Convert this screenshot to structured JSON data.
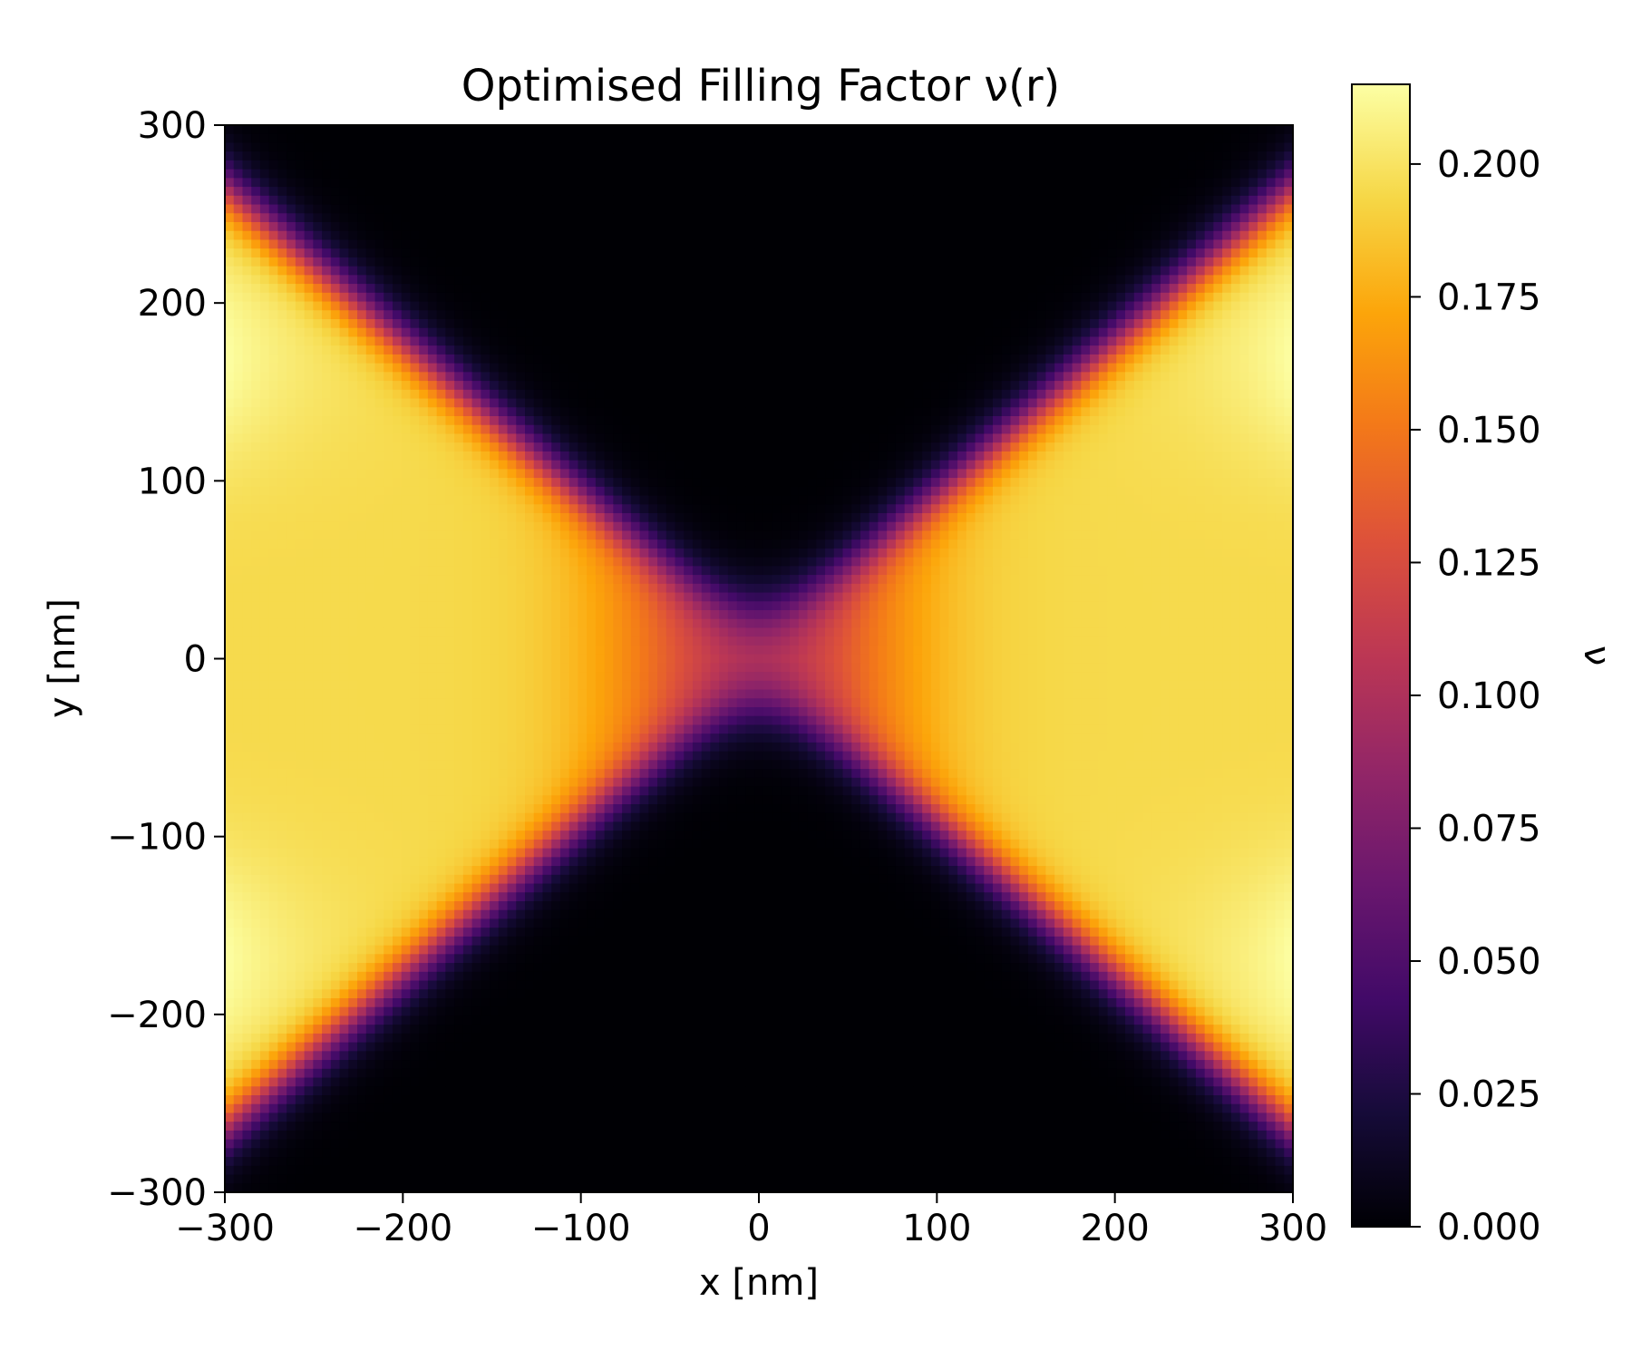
{
  "chart_data": {
    "type": "heatmap",
    "title": "Optimised Filling Factor ν(r)",
    "xlabel": "x [nm]",
    "ylabel": "y [nm]",
    "xlim": [
      -300,
      300
    ],
    "ylim": [
      -300,
      300
    ],
    "x_ticks": [
      -300,
      -200,
      -100,
      0,
      100,
      200,
      300
    ],
    "y_ticks": [
      -300,
      -200,
      -100,
      0,
      100,
      200,
      300
    ],
    "x_tick_labels": [
      "−300",
      "−200",
      "−100",
      "0",
      "100",
      "200",
      "300"
    ],
    "y_tick_labels": [
      "−300",
      "−200",
      "−100",
      "0",
      "100",
      "200",
      "300"
    ],
    "colorbar": {
      "label": "ν",
      "colormap": "inferno",
      "range": [
        0,
        0.215
      ],
      "ticks": [
        0.0,
        0.025,
        0.05,
        0.075,
        0.1,
        0.125,
        0.15,
        0.175,
        0.2
      ],
      "tick_labels": [
        "0.000",
        "0.025",
        "0.050",
        "0.075",
        "0.100",
        "0.125",
        "0.150",
        "0.175",
        "0.200"
      ]
    },
    "field": {
      "description_model": "hourglass-shaped filled region open to left/right edges; constriction at origin",
      "max_value": 0.21,
      "bulk_value": 0.195,
      "center_value": 0.105,
      "neck_half_width_nm": 28,
      "edge_half_height_nm": 265,
      "edge_fade_nm": 22,
      "grid_resolution": 121,
      "colormap_stops": [
        [
          0.0,
          "#000004"
        ],
        [
          0.1,
          "#160b39"
        ],
        [
          0.2,
          "#420a68"
        ],
        [
          0.3,
          "#6a176e"
        ],
        [
          0.4,
          "#932667"
        ],
        [
          0.5,
          "#bc3754"
        ],
        [
          0.6,
          "#dd513a"
        ],
        [
          0.7,
          "#f37819"
        ],
        [
          0.8,
          "#fca50a"
        ],
        [
          0.9,
          "#f6d746"
        ],
        [
          1.0,
          "#fcffa4"
        ]
      ]
    }
  }
}
